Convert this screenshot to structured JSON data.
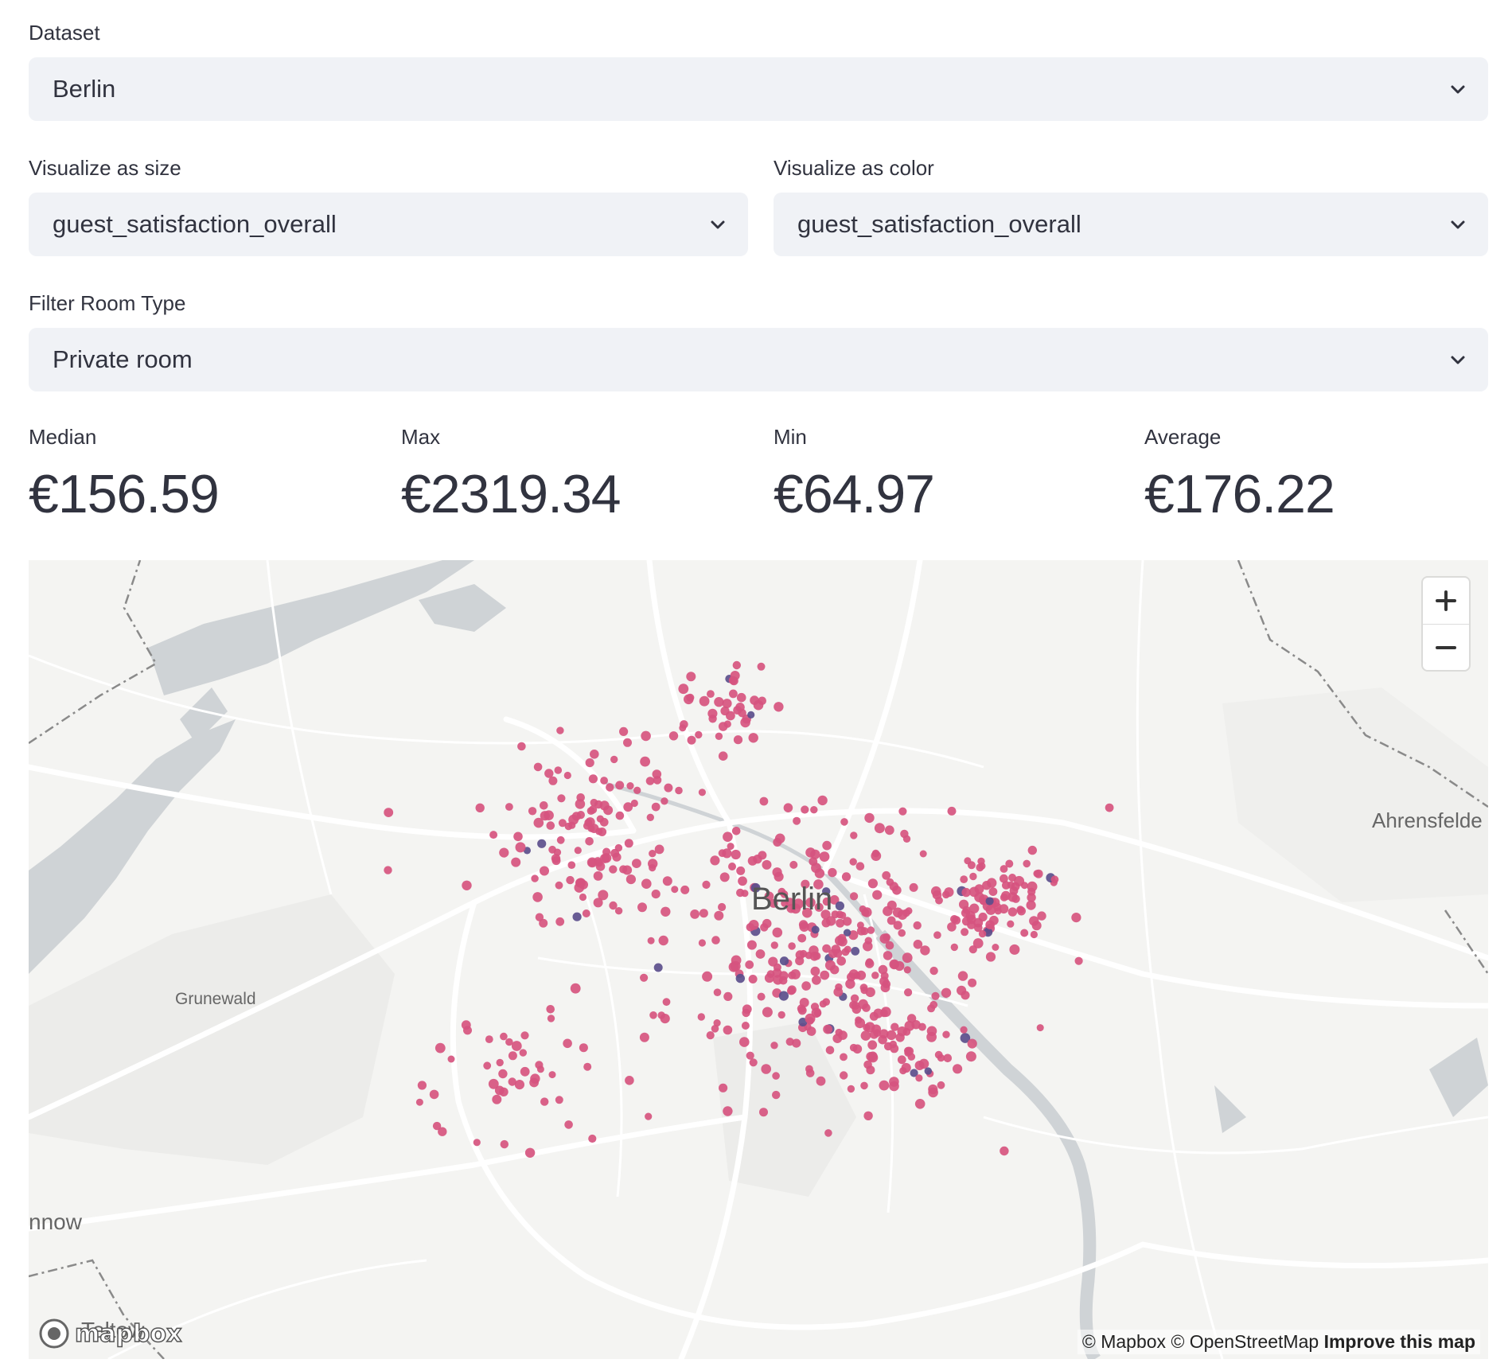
{
  "dataset": {
    "label": "Dataset",
    "value": "Berlin"
  },
  "size_select": {
    "label": "Visualize as size",
    "value": "guest_satisfaction_overall"
  },
  "color_select": {
    "label": "Visualize as color",
    "value": "guest_satisfaction_overall"
  },
  "room_filter": {
    "label": "Filter Room Type",
    "value": "Private room"
  },
  "metrics": [
    {
      "label": "Median",
      "value": "€156.59"
    },
    {
      "label": "Max",
      "value": "€2319.34"
    },
    {
      "label": "Min",
      "value": "€64.97"
    },
    {
      "label": "Average",
      "value": "€176.22"
    }
  ],
  "map": {
    "center_label": "Berlin",
    "place_labels": [
      "Grunewald",
      "Ahrensfelde",
      "nnow",
      "Teltow"
    ],
    "zoom_in": "+",
    "zoom_out": "−",
    "logo_text": "mapbox",
    "attribution": {
      "mapbox": "© Mapbox",
      "osm": "© OpenStreetMap",
      "improve": "Improve this map"
    },
    "colors": {
      "point": "#d6547f",
      "point_low": "#5b4e8c",
      "water": "#cfd3d6",
      "road": "#ffffff",
      "land": "#f4f4f2",
      "park": "#ebebe9"
    },
    "icons": [
      "chevron-down-icon",
      "plus-icon",
      "minus-icon",
      "mapbox-logo-icon"
    ]
  }
}
